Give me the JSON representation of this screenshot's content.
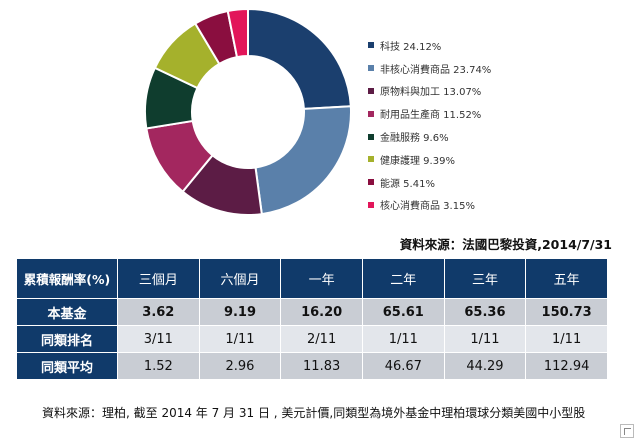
{
  "chart_data": {
    "type": "pie",
    "labels": [
      "科技 24.12%",
      "非核心消費商品 23.74%",
      "原物料與加工 13.07%",
      "耐用品生產商 11.52%",
      "金融服務 9.6%",
      "健康護理 9.39%",
      "能源 5.41%",
      "核心消費商品 3.15%"
    ],
    "values": [
      24.12,
      23.74,
      13.07,
      11.52,
      9.6,
      9.39,
      5.41,
      3.15
    ],
    "colors": [
      "#1b3f6e",
      "#5a80aa",
      "#5c1c45",
      "#a3275f",
      "#0f3d2e",
      "#a5b12c",
      "#8a0e3f",
      "#e2165a"
    ],
    "donut": true,
    "legend_position": "right"
  },
  "source_top": "資料來源：法國巴黎投資,2014/7/31",
  "table": {
    "headers": [
      "累積報酬率(%)",
      "三個月",
      "六個月",
      "一年",
      "二年",
      "三年",
      "五年"
    ],
    "rows": [
      {
        "label": "本基金",
        "values": [
          "3.62",
          "9.19",
          "16.20",
          "65.61",
          "65.36",
          "150.73"
        ]
      },
      {
        "label": "同類排名",
        "values": [
          "3/11",
          "1/11",
          "2/11",
          "1/11",
          "1/11",
          "1/11"
        ]
      },
      {
        "label": "同類平均",
        "values": [
          "1.52",
          "2.96",
          "11.83",
          "46.67",
          "44.29",
          "112.94"
        ]
      }
    ]
  },
  "source_bottom": "資料來源：理柏, 截至 2014 年 7 月 31 日 , 美元計價,同類型為境外基金中理柏環球分類美國中小型股"
}
